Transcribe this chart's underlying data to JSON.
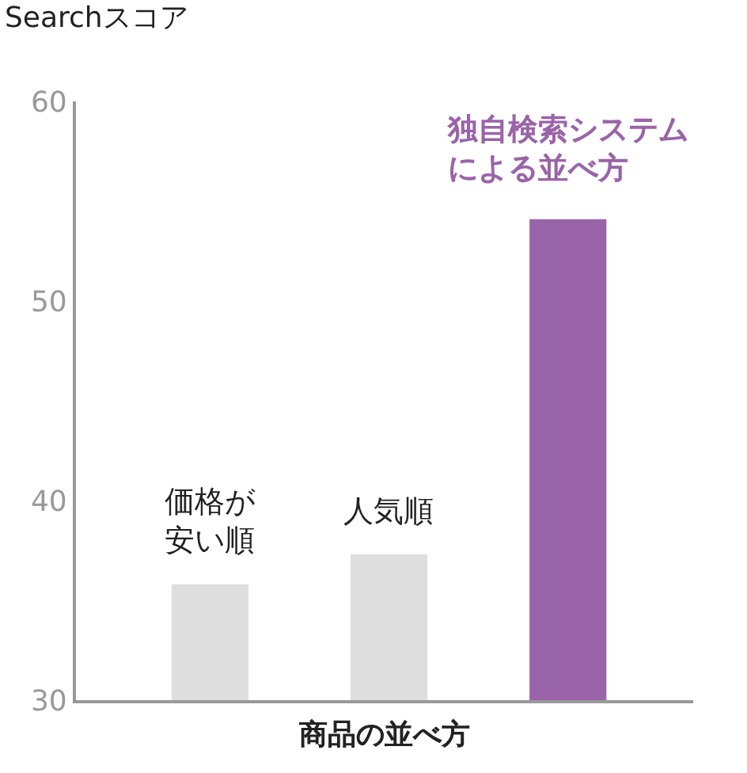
{
  "chart_data": {
    "type": "bar",
    "ylabel": "Searchスコア",
    "xlabel": "商品の並べ方",
    "categories": [
      "価格が安い順",
      "人気順",
      "独自検索システムによる並べ方"
    ],
    "values": [
      35.8,
      37.3,
      54.1
    ],
    "colors": [
      "#dedede",
      "#dedede",
      "#9a64a8"
    ],
    "ylim": [
      30,
      60
    ],
    "yticks": [
      30,
      40,
      50,
      60
    ],
    "legend": false
  }
}
